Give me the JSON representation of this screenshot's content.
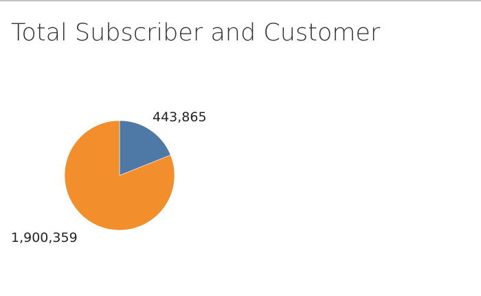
{
  "page": {
    "title": "Total Subscriber and Customer"
  },
  "chart_data": {
    "type": "pie",
    "title": "Total Subscriber and Customer",
    "slices": [
      {
        "value": 443865,
        "label": "443,865",
        "color": "#4e79a7"
      },
      {
        "value": 1900359,
        "label": "1,900,359",
        "color": "#f28e2b"
      }
    ],
    "legend": "none"
  }
}
